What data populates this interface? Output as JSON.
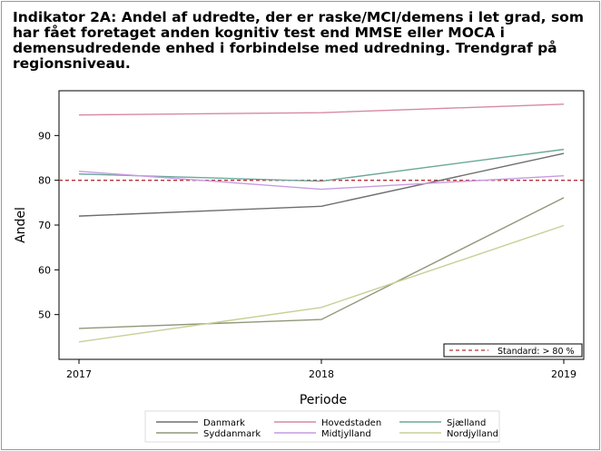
{
  "chart_data": {
    "type": "line",
    "title": "Indikator 2A: Andel af udredte, der er raske/MCI/demens i let grad, som har fået foretaget anden kognitiv test end MMSE eller MOCA i demensudredende enhed i forbindelse med udredning. Trendgraf på regionsniveau.",
    "xlabel": "Periode",
    "ylabel": "Andel",
    "x": [
      2017,
      2018,
      2019
    ],
    "x_ticks": [
      "2017",
      "2018",
      "2019"
    ],
    "y_ticks": [
      "50",
      "60",
      "70",
      "80",
      "90"
    ],
    "ylim": [
      40,
      100
    ],
    "series": [
      {
        "name": "Danmark",
        "color": "#6e6e6e",
        "values": [
          72.0,
          74.2,
          86.0
        ]
      },
      {
        "name": "Hovedstaden",
        "color": "#d68aa0",
        "values": [
          94.6,
          95.1,
          97.0
        ]
      },
      {
        "name": "Sjælland",
        "color": "#6ea79a",
        "values": [
          81.4,
          79.8,
          86.9
        ]
      },
      {
        "name": "Syddanmark",
        "color": "#8e9878",
        "values": [
          46.9,
          48.9,
          76.1
        ]
      },
      {
        "name": "Midtjylland",
        "color": "#c79ce0",
        "values": [
          82.0,
          78.0,
          81.0
        ]
      },
      {
        "name": "Nordjylland",
        "color": "#c8cf96",
        "values": [
          43.9,
          51.6,
          69.9
        ]
      }
    ],
    "reference_line": {
      "label": "Standard: > 80 %",
      "value": 80,
      "color": "#b5303a"
    },
    "legend_position": "bottom",
    "grid": false
  }
}
